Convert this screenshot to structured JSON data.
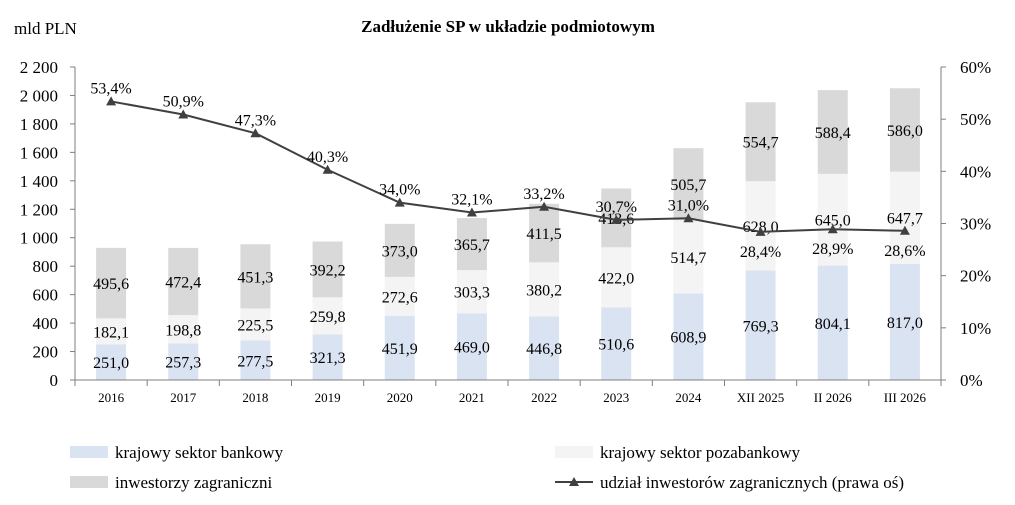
{
  "chart_data": {
    "type": "bar",
    "stacked": true,
    "title": "Zadłużenie SP w układzie podmiotowym",
    "ylabel": "mld PLN",
    "y2label": "",
    "ylim": [
      0,
      2200
    ],
    "yticks": [
      "0",
      "200",
      "400",
      "600",
      "800",
      "1 000",
      "1 200",
      "1 400",
      "1 600",
      "1 800",
      "2 000",
      "2 200"
    ],
    "y2lim": [
      0,
      60
    ],
    "y2ticks": [
      "0%",
      "10%",
      "20%",
      "30%",
      "40%",
      "50%",
      "60%"
    ],
    "categories": [
      "2016",
      "2017",
      "2018",
      "2019",
      "2020",
      "2021",
      "2022",
      "2023",
      "2024",
      "XII 2025",
      "II 2026",
      "III 2026"
    ],
    "series": [
      {
        "name": "krajowy sektor bankowy",
        "color": "#dae3f2",
        "values": [
          251.0,
          257.3,
          277.5,
          321.3,
          451.9,
          469.0,
          446.8,
          510.6,
          608.9,
          769.3,
          804.1,
          817.0
        ],
        "labels": [
          "251,0",
          "257,3",
          "277,5",
          "321,3",
          "451,9",
          "469,0",
          "446,8",
          "510,6",
          "608,9",
          "769,3",
          "804,1",
          "817,0"
        ]
      },
      {
        "name": "krajowy sektor pozabankowy",
        "color": "#f4f4f4",
        "values": [
          182.1,
          198.8,
          225.5,
          259.8,
          272.6,
          303.3,
          380.2,
          422.0,
          514.7,
          628.0,
          645.0,
          647.7
        ],
        "labels": [
          "182,1",
          "198,8",
          "225,5",
          "259,8",
          "272,6",
          "303,3",
          "380,2",
          "422,0",
          "514,7",
          "628,0",
          "645,0",
          "647,7"
        ]
      },
      {
        "name": "inwestorzy zagraniczni",
        "color": "#d9d9d9",
        "values": [
          495.6,
          472.4,
          451.3,
          392.2,
          373.0,
          365.7,
          411.5,
          413.6,
          505.7,
          554.7,
          588.4,
          586.0
        ],
        "labels": [
          "495,6",
          "472,4",
          "451,3",
          "392,2",
          "373,0",
          "365,7",
          "411,5",
          "413,6",
          "505,7",
          "554,7",
          "588,4",
          "586,0"
        ]
      }
    ],
    "line": {
      "name": "udział inwestorów zagranicznych (prawa oś)",
      "color": "#404040",
      "axis": "right",
      "values": [
        53.4,
        50.9,
        47.3,
        40.3,
        34.0,
        32.1,
        33.2,
        30.7,
        31.0,
        28.4,
        28.9,
        28.6
      ],
      "labels": [
        "53,4%",
        "50,9%",
        "47,3%",
        "40,3%",
        "34,0%",
        "32,1%",
        "33,2%",
        "30,7%",
        "31,0%",
        "28,4%",
        "28,9%",
        "28,6%"
      ]
    },
    "legend_position": "bottom",
    "grid": false
  }
}
